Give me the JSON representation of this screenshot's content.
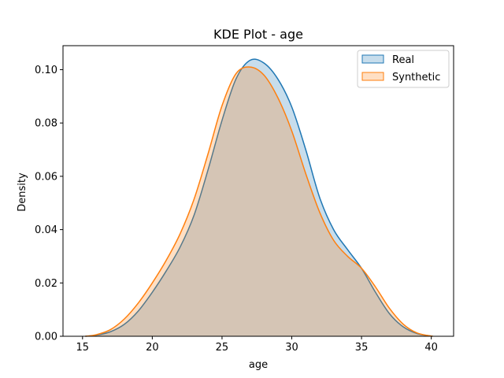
{
  "chart_data": {
    "type": "area",
    "title": "KDE Plot - age",
    "xlabel": "age",
    "ylabel": "Density",
    "xlim": [
      13.6,
      41.6
    ],
    "ylim": [
      0,
      0.109
    ],
    "xticks": [
      15,
      20,
      25,
      30,
      35,
      40
    ],
    "xtick_labels": [
      "15",
      "20",
      "25",
      "30",
      "35",
      "40"
    ],
    "yticks": [
      0,
      0.02,
      0.04,
      0.06,
      0.08,
      0.1
    ],
    "ytick_labels": [
      "0.00",
      "0.02",
      "0.04",
      "0.06",
      "0.08",
      "0.10"
    ],
    "grid": false,
    "legend_position": "top-right",
    "series": [
      {
        "name": "Real",
        "color": "#1f77b4",
        "x": [
          15.2,
          16,
          17,
          18,
          19,
          20,
          21,
          22,
          23,
          24,
          25,
          26,
          27,
          28,
          29,
          30,
          31,
          32,
          33,
          34,
          35,
          36,
          37,
          38,
          39,
          40.1
        ],
        "y": [
          0.0,
          0.0004,
          0.0017,
          0.0045,
          0.0095,
          0.0165,
          0.0245,
          0.0335,
          0.0455,
          0.0625,
          0.081,
          0.0965,
          0.1035,
          0.1025,
          0.0965,
          0.086,
          0.07,
          0.052,
          0.04,
          0.0325,
          0.0255,
          0.0165,
          0.0085,
          0.0035,
          0.001,
          0.0
        ]
      },
      {
        "name": "Synthetic",
        "color": "#ff7f0e",
        "x": [
          15.2,
          16,
          17,
          18,
          19,
          20,
          21,
          22,
          23,
          24,
          25,
          26,
          27,
          28,
          29,
          30,
          31,
          32,
          33,
          34,
          35,
          36,
          37,
          38,
          39,
          40.1
        ],
        "y": [
          0.0,
          0.0006,
          0.0025,
          0.0065,
          0.0125,
          0.02,
          0.0285,
          0.0385,
          0.0515,
          0.0685,
          0.0865,
          0.0985,
          0.101,
          0.098,
          0.0895,
          0.077,
          0.061,
          0.0465,
          0.036,
          0.03,
          0.0255,
          0.0185,
          0.0105,
          0.0045,
          0.0012,
          0.0
        ]
      }
    ]
  }
}
